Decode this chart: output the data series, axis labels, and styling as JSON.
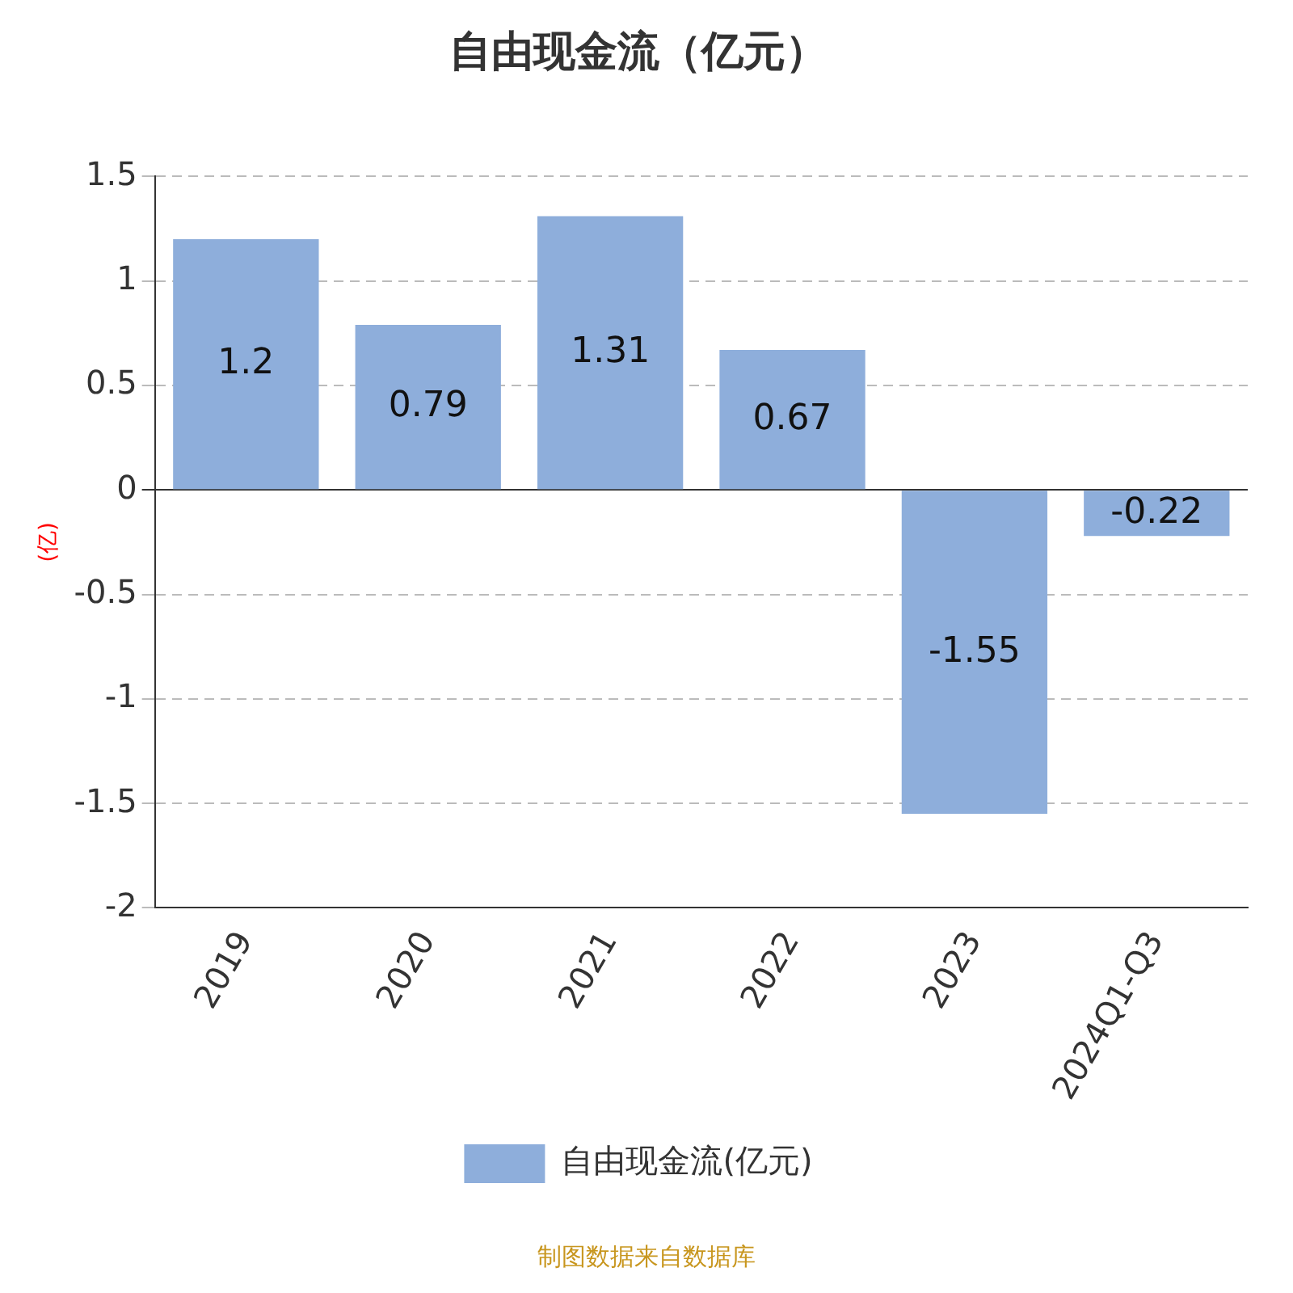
{
  "chart_data": {
    "type": "bar",
    "title": "自由现金流（亿元）",
    "ylabel": "(亿)",
    "categories": [
      "2019",
      "2020",
      "2021",
      "2022",
      "2023",
      "2024Q1-Q3"
    ],
    "series": [
      {
        "name": "自由现金流(亿元)",
        "color": "#8eaedb",
        "values": [
          1.2,
          0.79,
          1.31,
          0.67,
          -1.55,
          -0.22
        ]
      }
    ],
    "ylim": [
      -2,
      1.5
    ],
    "yticks": [
      -2,
      -1.5,
      -1,
      -0.5,
      0,
      0.5,
      1,
      1.5
    ],
    "grid": "y",
    "legend": "bottom",
    "data_labels": true,
    "annotations": [
      "制图数据来自数据库"
    ]
  }
}
